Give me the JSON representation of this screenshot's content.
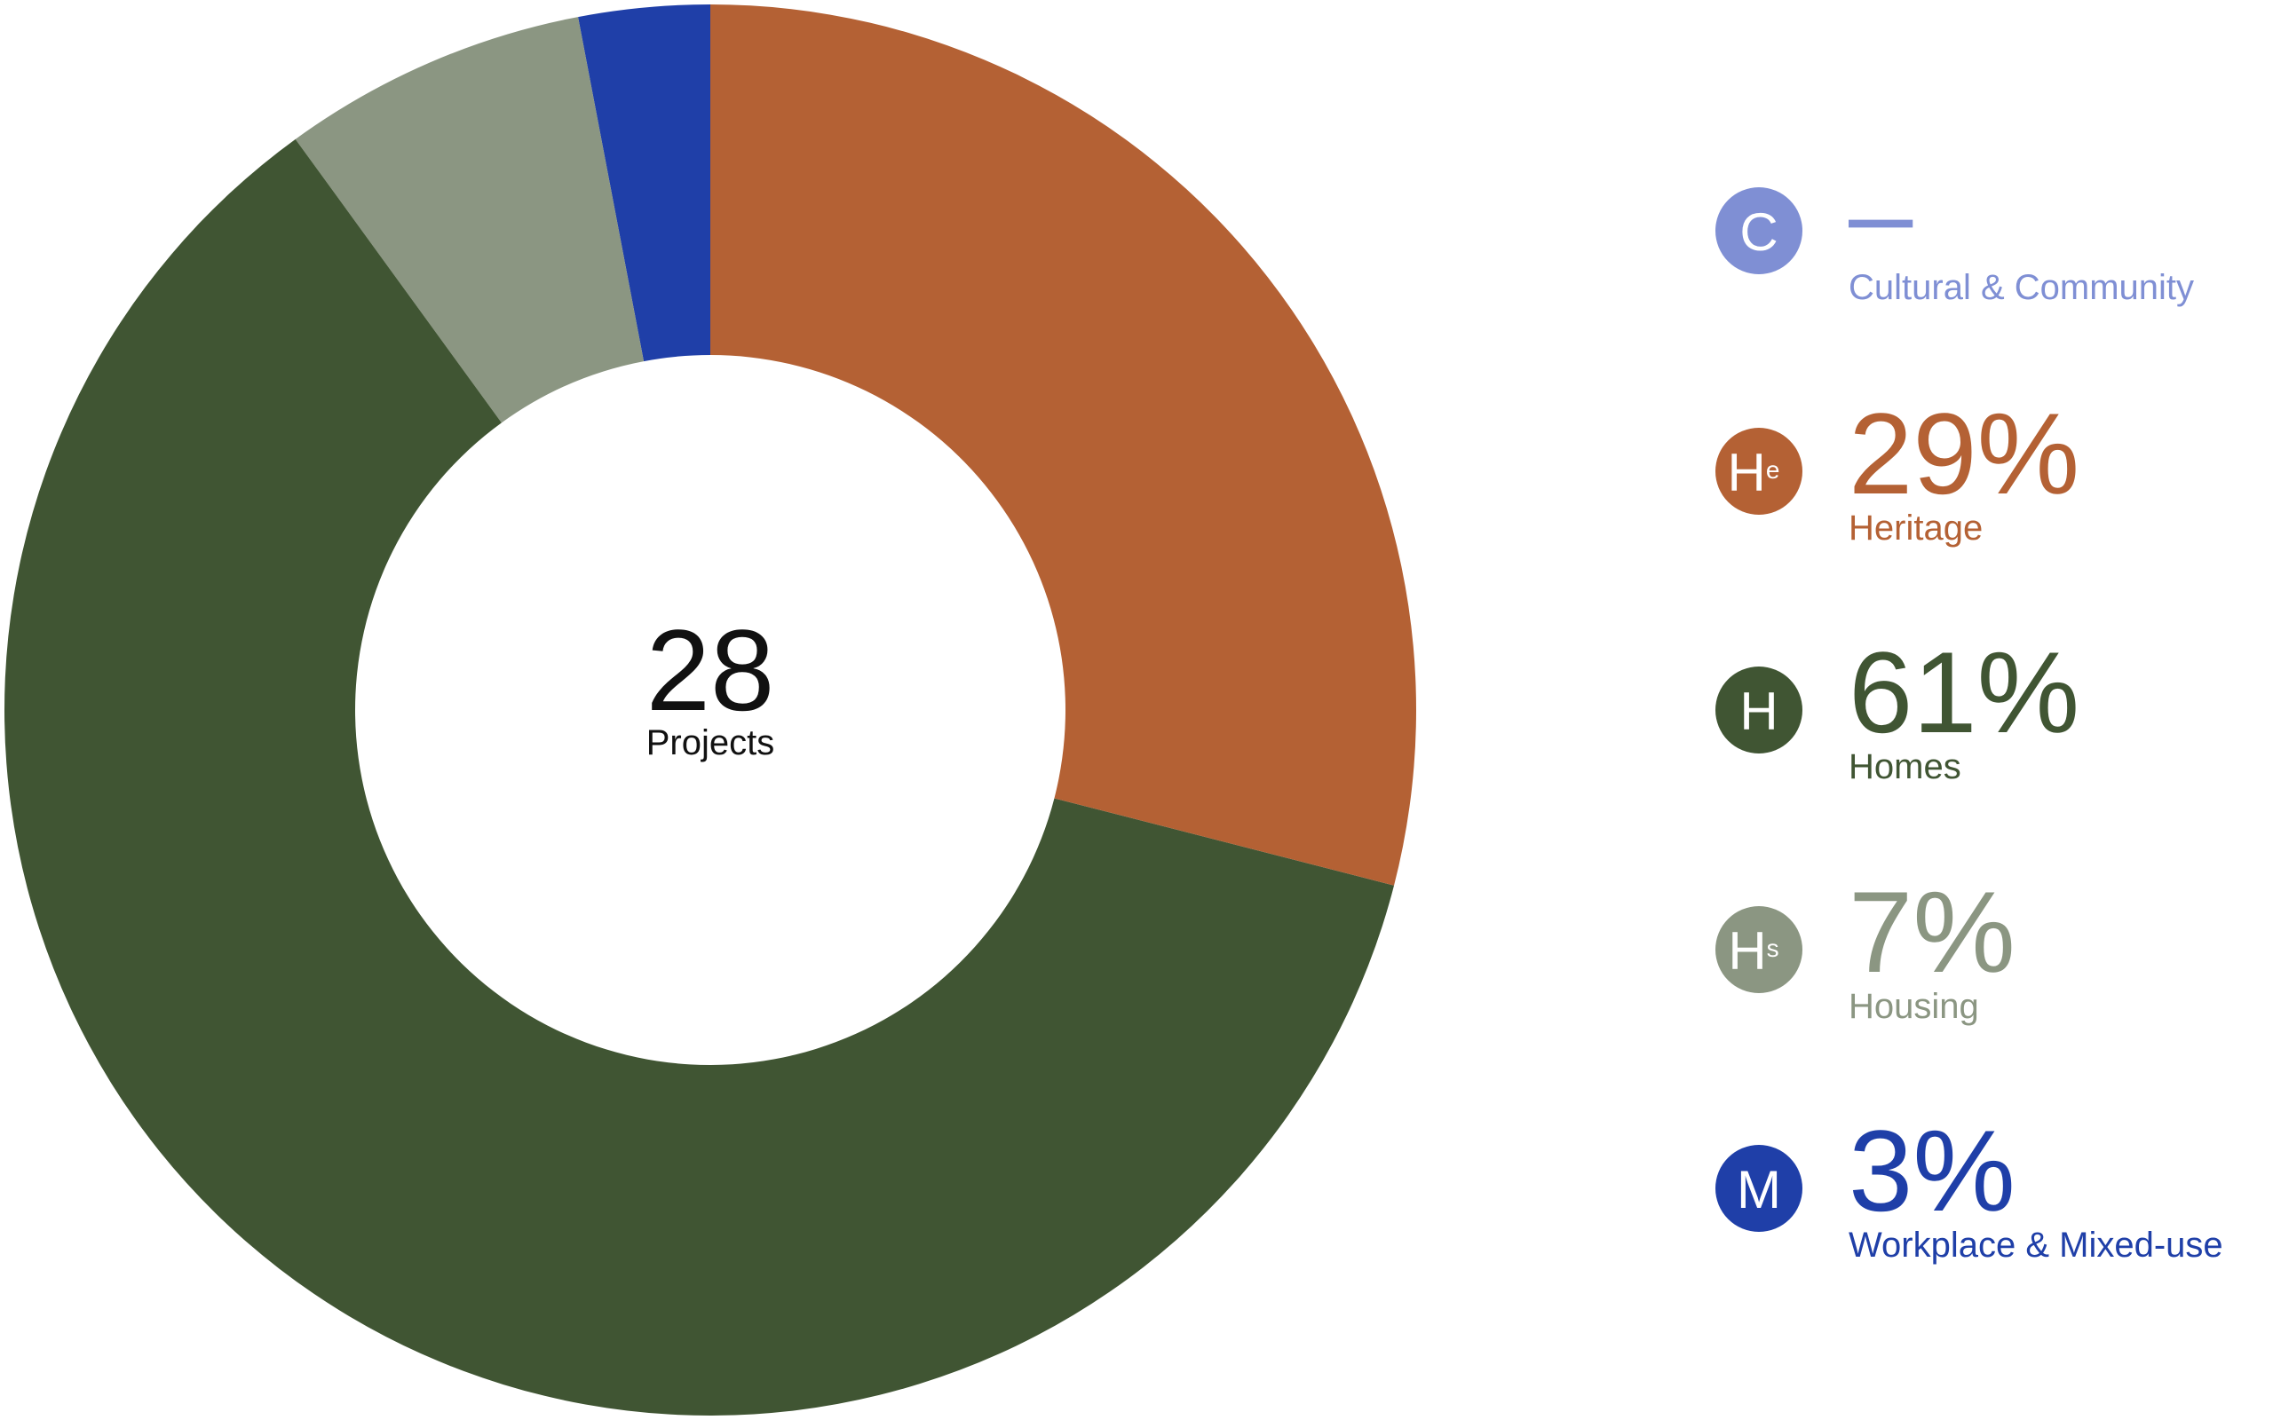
{
  "chart_data": {
    "type": "pie",
    "center_value": 28,
    "center_label": "Projects",
    "categories": [
      "Cultural & Community",
      "Heritage",
      "Homes",
      "Housing",
      "Workplace & Mixed-use"
    ],
    "symbols": [
      "C",
      "He",
      "H",
      "Hs",
      "M"
    ],
    "values": [
      null,
      29,
      61,
      7,
      3
    ],
    "value_labels": [
      "–",
      "29%",
      "61%",
      "7%",
      "3%"
    ],
    "colors": [
      "#7f8fd4",
      "#b46134",
      "#405533",
      "#8b9682",
      "#1f3fa8"
    ]
  }
}
